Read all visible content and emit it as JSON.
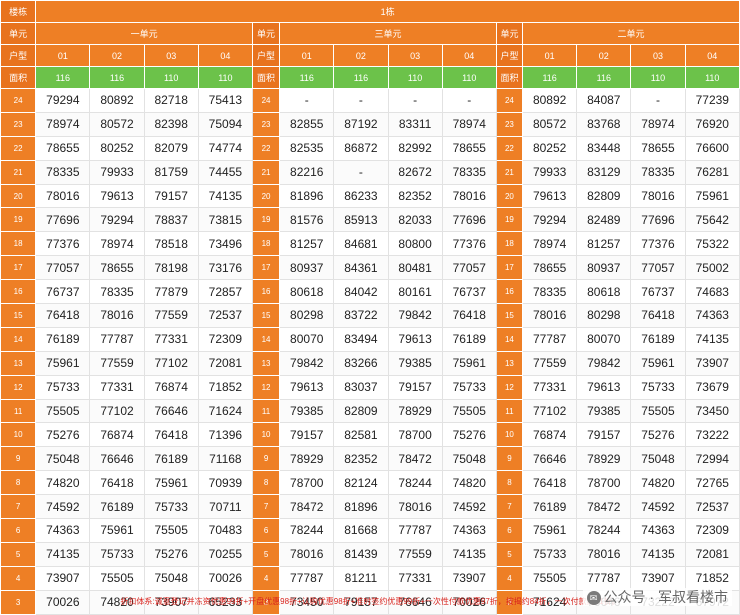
{
  "header": {
    "building_label": "楼栋",
    "building_value": "1栋",
    "unit_label": "单元",
    "type_label": "户型",
    "area_label": "面积"
  },
  "units": [
    {
      "name": "一单元",
      "types": [
        "01",
        "02",
        "03",
        "04"
      ],
      "areas": [
        "116",
        "116",
        "110",
        "110"
      ]
    },
    {
      "name": "三单元",
      "types": [
        "01",
        "02",
        "03",
        "04"
      ],
      "areas": [
        "116",
        "116",
        "110",
        "110"
      ]
    },
    {
      "name": "二单元",
      "types": [
        "01",
        "02",
        "03",
        "04"
      ],
      "areas": [
        "116",
        "116",
        "110",
        "110"
      ]
    }
  ],
  "rows": [
    {
      "floor": "24",
      "u1": [
        "79294",
        "80892",
        "82718",
        "75413"
      ],
      "u2": [
        "-",
        "-",
        "-",
        "-"
      ],
      "u3": [
        "80892",
        "84087",
        "-",
        "77239"
      ]
    },
    {
      "floor": "23",
      "u1": [
        "78974",
        "80572",
        "82398",
        "75094"
      ],
      "u2": [
        "82855",
        "87192",
        "83311",
        "78974"
      ],
      "u3": [
        "80572",
        "83768",
        "78974",
        "76920"
      ]
    },
    {
      "floor": "22",
      "u1": [
        "78655",
        "80252",
        "82079",
        "74774"
      ],
      "u2": [
        "82535",
        "86872",
        "82992",
        "78655"
      ],
      "u3": [
        "80252",
        "83448",
        "78655",
        "76600"
      ]
    },
    {
      "floor": "21",
      "u1": [
        "78335",
        "79933",
        "81759",
        "74455"
      ],
      "u2": [
        "82216",
        "-",
        "82672",
        "78335"
      ],
      "u3": [
        "79933",
        "83129",
        "78335",
        "76281"
      ]
    },
    {
      "floor": "20",
      "u1": [
        "78016",
        "79613",
        "79157",
        "74135"
      ],
      "u2": [
        "81896",
        "86233",
        "82352",
        "78016"
      ],
      "u3": [
        "79613",
        "82809",
        "78016",
        "75961"
      ]
    },
    {
      "floor": "19",
      "u1": [
        "77696",
        "79294",
        "78837",
        "73815"
      ],
      "u2": [
        "81576",
        "85913",
        "82033",
        "77696"
      ],
      "u3": [
        "79294",
        "82489",
        "77696",
        "75642"
      ]
    },
    {
      "floor": "18",
      "u1": [
        "77376",
        "78974",
        "78518",
        "73496"
      ],
      "u2": [
        "81257",
        "84681",
        "80800",
        "77376"
      ],
      "u3": [
        "78974",
        "81257",
        "77376",
        "75322"
      ]
    },
    {
      "floor": "17",
      "u1": [
        "77057",
        "78655",
        "78198",
        "73176"
      ],
      "u2": [
        "80937",
        "84361",
        "80481",
        "77057"
      ],
      "u3": [
        "78655",
        "80937",
        "77057",
        "75002"
      ]
    },
    {
      "floor": "16",
      "u1": [
        "76737",
        "78335",
        "77879",
        "72857"
      ],
      "u2": [
        "80618",
        "84042",
        "80161",
        "76737"
      ],
      "u3": [
        "78335",
        "80618",
        "76737",
        "74683"
      ]
    },
    {
      "floor": "15",
      "u1": [
        "76418",
        "78016",
        "77559",
        "72537"
      ],
      "u2": [
        "80298",
        "83722",
        "79842",
        "76418"
      ],
      "u3": [
        "78016",
        "80298",
        "76418",
        "74363"
      ]
    },
    {
      "floor": "14",
      "u1": [
        "76189",
        "77787",
        "77331",
        "72309"
      ],
      "u2": [
        "80070",
        "83494",
        "79613",
        "76189"
      ],
      "u3": [
        "77787",
        "80070",
        "76189",
        "74135"
      ]
    },
    {
      "floor": "13",
      "u1": [
        "75961",
        "77559",
        "77102",
        "72081"
      ],
      "u2": [
        "79842",
        "83266",
        "79385",
        "75961"
      ],
      "u3": [
        "77559",
        "79842",
        "75961",
        "73907"
      ]
    },
    {
      "floor": "12",
      "u1": [
        "75733",
        "77331",
        "76874",
        "71852"
      ],
      "u2": [
        "79613",
        "83037",
        "79157",
        "75733"
      ],
      "u3": [
        "77331",
        "79613",
        "75733",
        "73679"
      ]
    },
    {
      "floor": "11",
      "u1": [
        "75505",
        "77102",
        "76646",
        "71624"
      ],
      "u2": [
        "79385",
        "82809",
        "78929",
        "75505"
      ],
      "u3": [
        "77102",
        "79385",
        "75505",
        "73450"
      ]
    },
    {
      "floor": "10",
      "u1": [
        "75276",
        "76874",
        "76418",
        "71396"
      ],
      "u2": [
        "79157",
        "82581",
        "78700",
        "75276"
      ],
      "u3": [
        "76874",
        "79157",
        "75276",
        "73222"
      ]
    },
    {
      "floor": "9",
      "u1": [
        "75048",
        "76646",
        "76189",
        "71168"
      ],
      "u2": [
        "78929",
        "82352",
        "78472",
        "75048"
      ],
      "u3": [
        "76646",
        "78929",
        "75048",
        "72994"
      ]
    },
    {
      "floor": "8",
      "u1": [
        "74820",
        "76418",
        "75961",
        "70939"
      ],
      "u2": [
        "78700",
        "82124",
        "78244",
        "74820"
      ],
      "u3": [
        "76418",
        "78700",
        "74820",
        "72765"
      ]
    },
    {
      "floor": "7",
      "u1": [
        "74592",
        "76189",
        "75733",
        "70711"
      ],
      "u2": [
        "78472",
        "81896",
        "78016",
        "74592"
      ],
      "u3": [
        "76189",
        "78472",
        "74592",
        "72537"
      ]
    },
    {
      "floor": "6",
      "u1": [
        "74363",
        "75961",
        "75505",
        "70483"
      ],
      "u2": [
        "78244",
        "81668",
        "77787",
        "74363"
      ],
      "u3": [
        "75961",
        "78244",
        "74363",
        "72309"
      ]
    },
    {
      "floor": "5",
      "u1": [
        "74135",
        "75733",
        "75276",
        "70255"
      ],
      "u2": [
        "78016",
        "81439",
        "77559",
        "74135"
      ],
      "u3": [
        "75733",
        "78016",
        "74135",
        "72081"
      ]
    },
    {
      "floor": "4",
      "u1": [
        "73907",
        "75505",
        "75048",
        "70026"
      ],
      "u2": [
        "77787",
        "81211",
        "77331",
        "73907"
      ],
      "u3": [
        "75505",
        "77787",
        "73907",
        "71852"
      ]
    },
    {
      "floor": "3",
      "u1": [
        "70026",
        "74820",
        "73907",
        "65233"
      ],
      "u2": [
        "73450",
        "79157",
        "76646",
        "70026"
      ],
      "u3": [
        "71624",
        "76646",
        "73222",
        "67972"
      ]
    }
  ],
  "footer_text": "折扣体系:诚意登记并冻资优惠99折+开盘优惠98折+认购优惠98折+准时签约优惠99折+一次性付款优惠97折，按揭约84折，一次付款约91折。",
  "watermark": {
    "icon": "wechat-icon",
    "text": "公众号 · 军叔看楼市"
  }
}
